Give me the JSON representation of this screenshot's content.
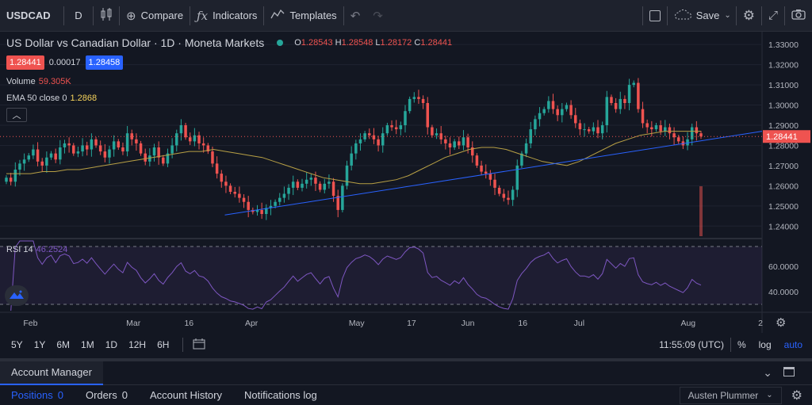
{
  "toolbar": {
    "symbol": "USDCAD",
    "interval": "D",
    "compare": "Compare",
    "indicators": "Indicators",
    "templates": "Templates",
    "save": "Save"
  },
  "legend": {
    "title": "US Dollar vs Canadian Dollar · 1D · Moneta Markets",
    "o_label": "O",
    "o": "1.28543",
    "h_label": "H",
    "h": "1.28548",
    "l_label": "L",
    "l": "1.28172",
    "c_label": "C",
    "c": "1.28441",
    "sell_price": "1.28441",
    "spread": "0.00017",
    "buy_price": "1.28458",
    "volume_label": "Volume",
    "volume_value": "59.305K",
    "ema_label": "EMA 50 close 0",
    "ema_value": "1.2868",
    "rsi_label": "RSI 14",
    "rsi_value": "46.2524"
  },
  "colors": {
    "up": "#26a69a",
    "down": "#ef5350",
    "ema": "#b8a045",
    "trendline": "#2962ff",
    "rsi": "#7e57c2",
    "accent": "#2962ff"
  },
  "chart_data": {
    "type": "candlestick",
    "price_axis_ticks": [
      "1.33000",
      "1.32000",
      "1.31000",
      "1.30000",
      "1.29000",
      "1.28000",
      "1.27000",
      "1.26000",
      "1.25000",
      "1.24000"
    ],
    "price_label": "1.28441",
    "ylim": [
      1.235,
      1.334
    ],
    "rsi_axis_ticks": [
      "60.0000",
      "40.0000"
    ],
    "rsi_ylim": [
      25,
      80
    ],
    "rsi_bands": [
      70,
      30
    ],
    "time_axis_labels": [
      "Feb",
      "Mar",
      "16",
      "Apr",
      "May",
      "17",
      "Jun",
      "16",
      "Jul",
      "Aug",
      "2"
    ],
    "closes": [
      1.264,
      1.262,
      1.268,
      1.271,
      1.273,
      1.275,
      1.278,
      1.272,
      1.27,
      1.274,
      1.276,
      1.273,
      1.279,
      1.281,
      1.28,
      1.276,
      1.277,
      1.28,
      1.278,
      1.283,
      1.28,
      1.277,
      1.274,
      1.278,
      1.282,
      1.279,
      1.277,
      1.286,
      1.283,
      1.281,
      1.276,
      1.272,
      1.275,
      1.279,
      1.274,
      1.271,
      1.276,
      1.28,
      1.286,
      1.29,
      1.284,
      1.282,
      1.285,
      1.281,
      1.28,
      1.277,
      1.271,
      1.266,
      1.262,
      1.26,
      1.257,
      1.256,
      1.254,
      1.252,
      1.248,
      1.247,
      1.248,
      1.246,
      1.249,
      1.25,
      1.252,
      1.254,
      1.256,
      1.259,
      1.262,
      1.259,
      1.261,
      1.263,
      1.264,
      1.261,
      1.258,
      1.261,
      1.262,
      1.255,
      1.248,
      1.26,
      1.27,
      1.276,
      1.281,
      1.283,
      1.286,
      1.285,
      1.283,
      1.28,
      1.286,
      1.29,
      1.289,
      1.288,
      1.29,
      1.297,
      1.303,
      1.304,
      1.303,
      1.301,
      1.289,
      1.285,
      1.286,
      1.283,
      1.281,
      1.279,
      1.282,
      1.28,
      1.284,
      1.279,
      1.275,
      1.27,
      1.267,
      1.266,
      1.263,
      1.259,
      1.256,
      1.254,
      1.253,
      1.258,
      1.27,
      1.276,
      1.281,
      1.288,
      1.293,
      1.296,
      1.298,
      1.302,
      1.298,
      1.295,
      1.298,
      1.3,
      1.295,
      1.291,
      1.288,
      1.288,
      1.287,
      1.289,
      1.286,
      1.29,
      1.304,
      1.301,
      1.298,
      1.303,
      1.301,
      1.31,
      1.311,
      1.298,
      1.291,
      1.289,
      1.288,
      1.29,
      1.287,
      1.289,
      1.286,
      1.284,
      1.282,
      1.28,
      1.283,
      1.289,
      1.286,
      1.2844
    ],
    "ema50": [
      1.266,
      1.266,
      1.266,
      1.267,
      1.267,
      1.268,
      1.268,
      1.269,
      1.27,
      1.271,
      1.272,
      1.273,
      1.274,
      1.275,
      1.276,
      1.277,
      1.277,
      1.278,
      1.277,
      1.276,
      1.275,
      1.274,
      1.272,
      1.27,
      1.268,
      1.266,
      1.264,
      1.263,
      1.262,
      1.261,
      1.261,
      1.262,
      1.263,
      1.265,
      1.268,
      1.271,
      1.274,
      1.276,
      1.278,
      1.279,
      1.279,
      1.278,
      1.276,
      1.274,
      1.272,
      1.271,
      1.27,
      1.272,
      1.275,
      1.278,
      1.281,
      1.283,
      1.285,
      1.286,
      1.287,
      1.287,
      1.287,
      1.287
    ],
    "trendline": [
      [
        0.295,
        1.2455
      ],
      [
        1.0,
        1.287
      ]
    ]
  },
  "range_bar": {
    "ranges": [
      "5Y",
      "1Y",
      "6M",
      "1M",
      "1D",
      "12H",
      "6H"
    ],
    "clock": "11:55:09 (UTC)",
    "percent": "%",
    "log": "log",
    "auto": "auto"
  },
  "bottom": {
    "account_manager": "Account Manager",
    "tabs": [
      {
        "label": "Positions",
        "count": "0"
      },
      {
        "label": "Orders",
        "count": "0"
      },
      {
        "label": "Account History",
        "count": ""
      },
      {
        "label": "Notifications log",
        "count": ""
      }
    ],
    "user": "Austen Plummer"
  }
}
